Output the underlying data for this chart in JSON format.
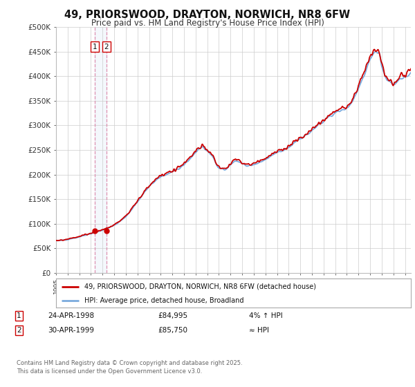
{
  "title": "49, PRIORSWOOD, DRAYTON, NORWICH, NR8 6FW",
  "subtitle": "Price paid vs. HM Land Registry's House Price Index (HPI)",
  "hpi_line_color": "#7aaadd",
  "price_line_color": "#cc0000",
  "vline_color": "#dd88aa",
  "marker_border": "#cc0000",
  "ylim": [
    0,
    500000
  ],
  "yticks": [
    0,
    50000,
    100000,
    150000,
    200000,
    250000,
    300000,
    350000,
    400000,
    450000,
    500000
  ],
  "ytick_labels": [
    "£0",
    "£50K",
    "£100K",
    "£150K",
    "£200K",
    "£250K",
    "£300K",
    "£350K",
    "£400K",
    "£450K",
    "£500K"
  ],
  "xmin": 1995.0,
  "xmax": 2025.5,
  "sale1_x": 1998.31,
  "sale1_y": 84995,
  "sale1_label": "1",
  "sale1_date": "24-APR-1998",
  "sale1_price": "£84,995",
  "sale1_hpi": "4% ↑ HPI",
  "sale2_x": 1999.33,
  "sale2_y": 85750,
  "sale2_label": "2",
  "sale2_date": "30-APR-1999",
  "sale2_price": "£85,750",
  "sale2_hpi": "≈ HPI",
  "legend_line1": "49, PRIORSWOOD, DRAYTON, NORWICH, NR8 6FW (detached house)",
  "legend_line2": "HPI: Average price, detached house, Broadland",
  "footer": "Contains HM Land Registry data © Crown copyright and database right 2025.\nThis data is licensed under the Open Government Licence v3.0.",
  "bg_color": "#ffffff",
  "plot_bg_color": "#ffffff",
  "grid_color": "#cccccc",
  "hpi_keypoints": [
    [
      1995.0,
      65000
    ],
    [
      1996.0,
      68000
    ],
    [
      1997.0,
      73000
    ],
    [
      1998.0,
      80000
    ],
    [
      1999.0,
      87000
    ],
    [
      2000.0,
      97000
    ],
    [
      2001.0,
      115000
    ],
    [
      2002.0,
      145000
    ],
    [
      2003.0,
      175000
    ],
    [
      2004.0,
      195000
    ],
    [
      2005.0,
      205000
    ],
    [
      2006.0,
      220000
    ],
    [
      2007.0,
      245000
    ],
    [
      2007.5,
      255000
    ],
    [
      2008.0,
      248000
    ],
    [
      2008.5,
      235000
    ],
    [
      2009.0,
      213000
    ],
    [
      2009.5,
      210000
    ],
    [
      2010.0,
      220000
    ],
    [
      2010.5,
      228000
    ],
    [
      2011.0,
      222000
    ],
    [
      2011.5,
      218000
    ],
    [
      2012.0,
      220000
    ],
    [
      2012.5,
      225000
    ],
    [
      2013.0,
      230000
    ],
    [
      2013.5,
      238000
    ],
    [
      2014.0,
      245000
    ],
    [
      2014.5,
      248000
    ],
    [
      2015.0,
      255000
    ],
    [
      2015.5,
      265000
    ],
    [
      2016.0,
      272000
    ],
    [
      2016.5,
      280000
    ],
    [
      2017.0,
      290000
    ],
    [
      2017.5,
      300000
    ],
    [
      2018.0,
      308000
    ],
    [
      2018.5,
      318000
    ],
    [
      2019.0,
      325000
    ],
    [
      2019.5,
      332000
    ],
    [
      2020.0,
      335000
    ],
    [
      2020.5,
      350000
    ],
    [
      2021.0,
      375000
    ],
    [
      2021.5,
      405000
    ],
    [
      2022.0,
      435000
    ],
    [
      2022.5,
      450000
    ],
    [
      2022.8,
      445000
    ],
    [
      2023.0,
      420000
    ],
    [
      2023.5,
      390000
    ],
    [
      2024.0,
      385000
    ],
    [
      2024.5,
      395000
    ],
    [
      2025.0,
      400000
    ],
    [
      2025.5,
      405000
    ]
  ]
}
